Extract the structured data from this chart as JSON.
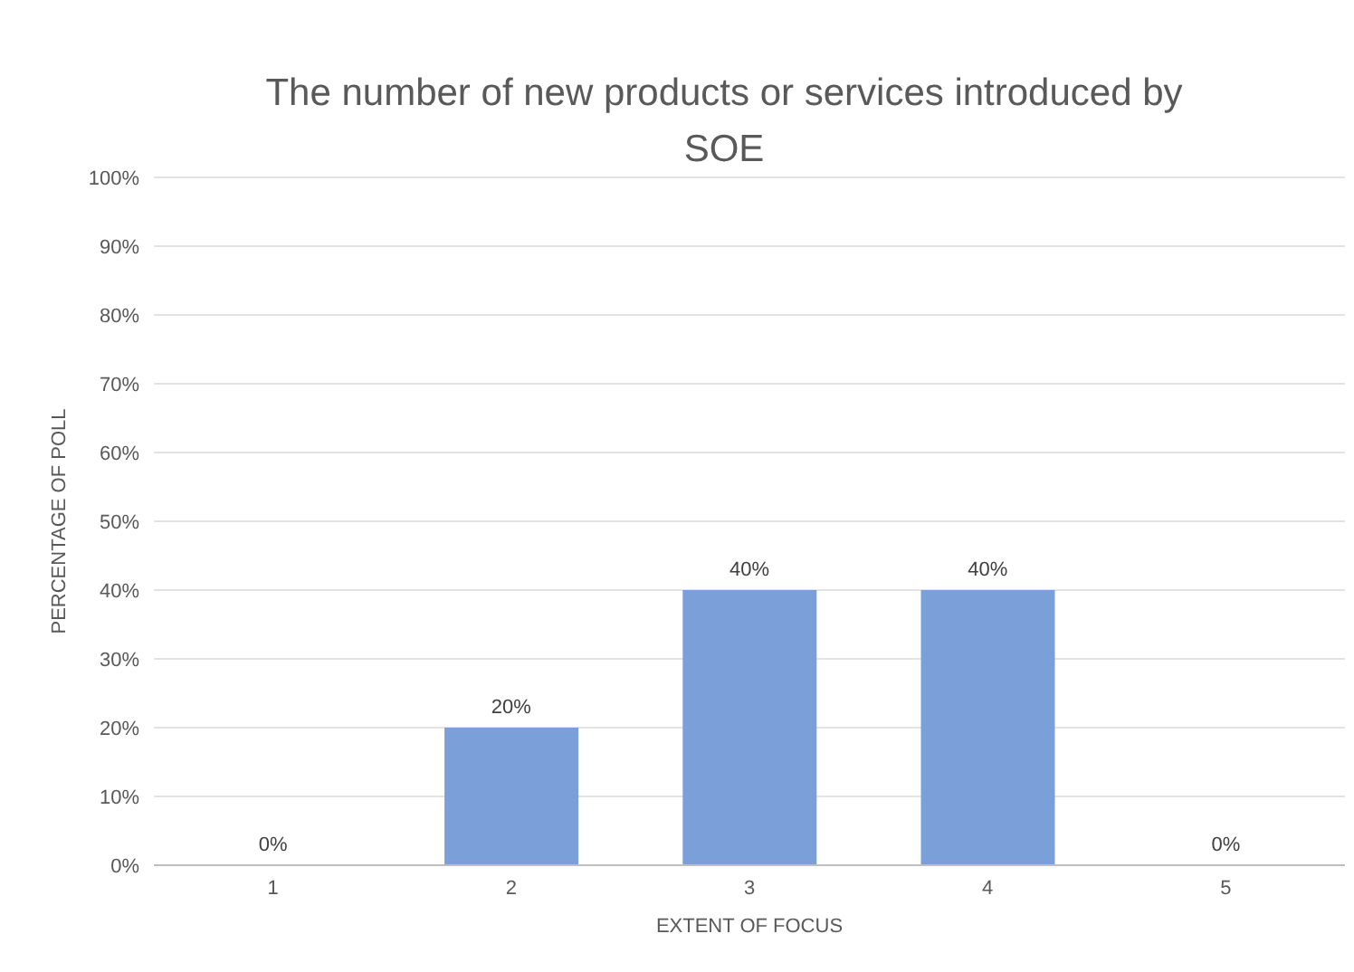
{
  "chart_data": {
    "type": "bar",
    "title": "The number of new products or services introduced by SOE",
    "xlabel": "EXTENT OF FOCUS",
    "ylabel": "PERCENTAGE OF POLL",
    "categories": [
      "1",
      "2",
      "3",
      "4",
      "5"
    ],
    "values": [
      0,
      20,
      40,
      40,
      0
    ],
    "value_labels": [
      "0%",
      "20%",
      "40%",
      "40%",
      "0%"
    ],
    "color": "#7b9fd8",
    "ylim": [
      0,
      100
    ],
    "yticks": [
      {
        "value": 0,
        "label": "0%"
      },
      {
        "value": 10,
        "label": "10%"
      },
      {
        "value": 20,
        "label": "20%"
      },
      {
        "value": 30,
        "label": "30%"
      },
      {
        "value": 40,
        "label": "40%"
      },
      {
        "value": 50,
        "label": "50%"
      },
      {
        "value": 60,
        "label": "60%"
      },
      {
        "value": 70,
        "label": "70%"
      },
      {
        "value": 80,
        "label": "80%"
      },
      {
        "value": 90,
        "label": "90%"
      },
      {
        "value": 100,
        "label": "100%"
      }
    ],
    "grid": "y",
    "legend": false
  }
}
